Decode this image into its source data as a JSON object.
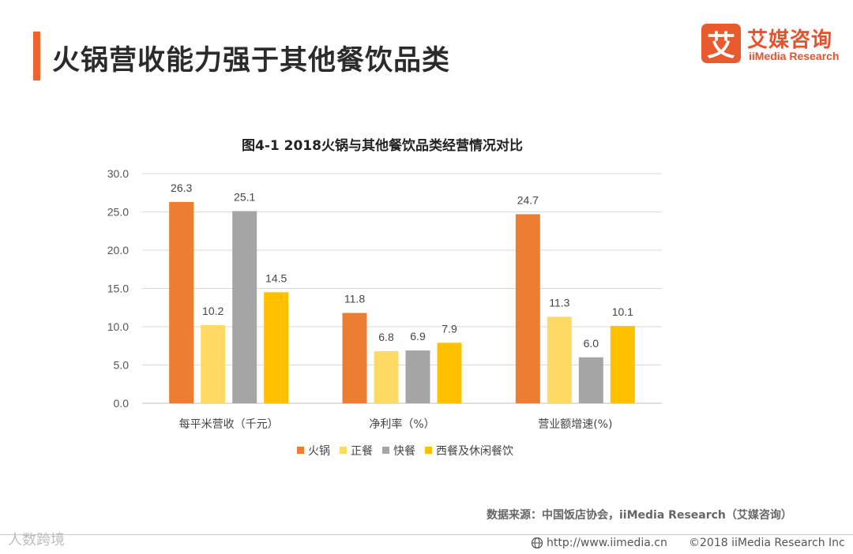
{
  "header": {
    "title": "火锅营收能力强于其他餐饮品类",
    "accent_color": "#f0642d"
  },
  "logo": {
    "mark": "艾",
    "name_cn": "艾媒咨询",
    "name_en": "iiMedia Research"
  },
  "chart_data": {
    "type": "bar",
    "title": "图4-1 2018火锅与其他餐饮品类经营情况对比",
    "categories": [
      "每平米营收（千元）",
      "净利率（%）",
      "营业额增速(%)"
    ],
    "series": [
      {
        "name": "火锅",
        "color": "#ed7d31",
        "values": [
          26.3,
          11.8,
          24.7
        ]
      },
      {
        "name": "正餐",
        "color": "#ffd966",
        "values": [
          10.2,
          6.8,
          11.3
        ]
      },
      {
        "name": "快餐",
        "color": "#a5a5a5",
        "values": [
          25.1,
          6.9,
          6.0
        ]
      },
      {
        "name": "西餐及休闲餐饮",
        "color": "#ffc000",
        "values": [
          14.5,
          7.9,
          10.1
        ]
      }
    ],
    "data_labels": [
      [
        "26.3",
        "11.8",
        "24.7"
      ],
      [
        "10.2",
        "6.8",
        "11.3"
      ],
      [
        "25.1",
        "6.9",
        "6.0"
      ],
      [
        "14.5",
        "7.9",
        "10.1"
      ]
    ],
    "ylim": [
      0,
      30
    ],
    "yticks": [
      "0.0",
      "5.0",
      "10.0",
      "15.0",
      "20.0",
      "25.0",
      "30.0"
    ],
    "xlabel": "",
    "ylabel": "",
    "grid": true,
    "legend": "bottom"
  },
  "footer": {
    "source": "数据来源：中国饭店协会，iiMedia Research（艾媒咨询）",
    "watermark": "人数跨境",
    "url": "http://www.iimedia.cn",
    "copyright": "©2018 iiMedia Research Inc"
  }
}
